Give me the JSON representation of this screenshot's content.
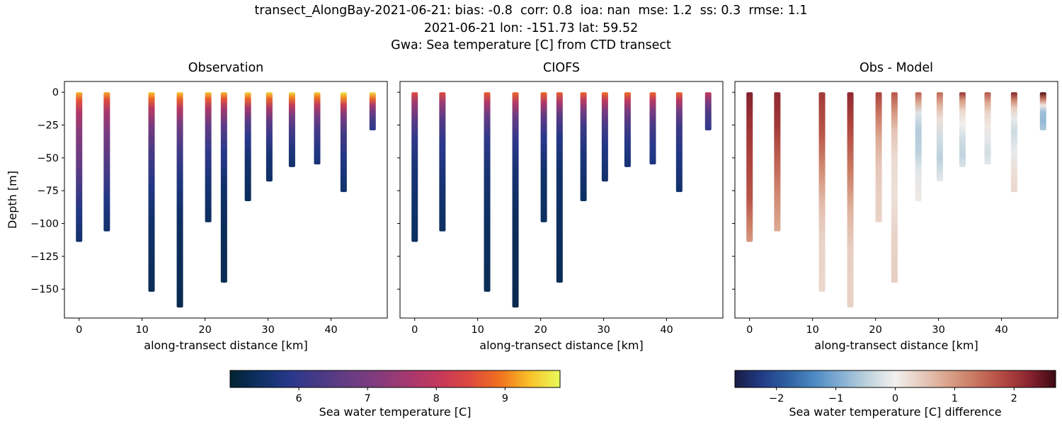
{
  "header": {
    "line1": "transect_AlongBay-2021-06-21: bias: -0.8  corr: 0.8  ioa: nan  mse: 1.2  ss: 0.3  rmse: 1.1",
    "line2": "2021-06-21 lon: -151.73 lat: 59.52",
    "line3": "Gwa: Sea temperature [C] from CTD transect"
  },
  "chart_data": {
    "type": "scatter",
    "subtype": "vertical-profile-transect",
    "xlabel": "along-transect distance [km]",
    "ylabel": "Depth [m]",
    "xlim": [
      -2.33,
      48.93
    ],
    "ylim": [
      -172,
      8.2
    ],
    "xticks": [
      0,
      10,
      20,
      30,
      40
    ],
    "yticks": [
      0,
      -25,
      -50,
      -75,
      -100,
      -125,
      -150
    ],
    "panels": [
      {
        "title": "Observation",
        "profile_key": "obs",
        "cmap": "thermal",
        "vmin": 5.0,
        "vmax": 9.8
      },
      {
        "title": "CIOFS",
        "profile_key": "model",
        "cmap": "thermal",
        "vmin": 5.0,
        "vmax": 9.8
      },
      {
        "title": "Obs - Model",
        "profile_key": "diff",
        "cmap": "balance",
        "vmin": -2.7,
        "vmax": 2.7
      }
    ],
    "colorbars": [
      {
        "label": "Sea water temperature [C]",
        "cmap": "thermal",
        "vmin": 5.0,
        "vmax": 9.8,
        "ticks": [
          6,
          7,
          8,
          9
        ]
      },
      {
        "label": "Sea water temperature [C] difference",
        "cmap": "balance",
        "vmin": -2.7,
        "vmax": 2.7,
        "ticks": [
          -2,
          -1,
          0,
          1,
          2
        ]
      }
    ],
    "colormaps": {
      "thermal": [
        "#042333",
        "#0d3064",
        "#28388d",
        "#493a85",
        "#683c83",
        "#873b7c",
        "#a7386e",
        "#c5395a",
        "#de493e",
        "#f0711e",
        "#fac228",
        "#e8fa5b"
      ],
      "balance": [
        "#181c43",
        "#223b87",
        "#2e62a1",
        "#4e8bc4",
        "#86b0d3",
        "#c1d4de",
        "#f2f0ee",
        "#e7cabc",
        "#d9a188",
        "#c97760",
        "#b34a41",
        "#8c2430",
        "#3c0911"
      ]
    },
    "stations": [
      {
        "x": 0,
        "bottom": -114,
        "obs": [
          [
            0,
            9.3
          ],
          [
            -6,
            8.6
          ],
          [
            -15,
            7.8
          ],
          [
            -30,
            7.2
          ],
          [
            -50,
            6.8
          ],
          [
            -70,
            6.3
          ],
          [
            -90,
            5.8
          ],
          [
            -114,
            5.5
          ]
        ],
        "model": [
          [
            0,
            8.5
          ],
          [
            -8,
            7.5
          ],
          [
            -20,
            6.6
          ],
          [
            -35,
            6.0
          ],
          [
            -60,
            5.6
          ],
          [
            -114,
            5.4
          ]
        ],
        "diff": [
          [
            0,
            2.3
          ],
          [
            -20,
            2.1
          ],
          [
            -50,
            1.9
          ],
          [
            -80,
            1.7
          ],
          [
            -100,
            1.3
          ],
          [
            -114,
            1.0
          ]
        ]
      },
      {
        "x": 4.4,
        "bottom": -106,
        "obs": [
          [
            0,
            9.2
          ],
          [
            -6,
            8.5
          ],
          [
            -15,
            7.6
          ],
          [
            -30,
            7.0
          ],
          [
            -55,
            6.4
          ],
          [
            -80,
            5.8
          ],
          [
            -106,
            5.5
          ]
        ],
        "model": [
          [
            0,
            8.5
          ],
          [
            -8,
            7.4
          ],
          [
            -20,
            6.5
          ],
          [
            -40,
            5.9
          ],
          [
            -70,
            5.6
          ],
          [
            -106,
            5.4
          ]
        ],
        "diff": [
          [
            0,
            2.2
          ],
          [
            -25,
            2.0
          ],
          [
            -50,
            1.6
          ],
          [
            -75,
            1.2
          ],
          [
            -106,
            0.8
          ]
        ]
      },
      {
        "x": 11.5,
        "bottom": -152,
        "obs": [
          [
            0,
            9.4
          ],
          [
            -5,
            8.8
          ],
          [
            -12,
            7.9
          ],
          [
            -25,
            7.0
          ],
          [
            -45,
            6.3
          ],
          [
            -70,
            5.8
          ],
          [
            -100,
            5.5
          ],
          [
            -152,
            5.3
          ]
        ],
        "model": [
          [
            0,
            8.7
          ],
          [
            -8,
            7.7
          ],
          [
            -18,
            6.7
          ],
          [
            -35,
            6.0
          ],
          [
            -60,
            5.6
          ],
          [
            -100,
            5.4
          ],
          [
            -152,
            5.3
          ]
        ],
        "diff": [
          [
            0,
            2.0
          ],
          [
            -30,
            1.7
          ],
          [
            -60,
            1.1
          ],
          [
            -85,
            0.6
          ],
          [
            -110,
            0.35
          ],
          [
            -152,
            0.3
          ]
        ]
      },
      {
        "x": 16,
        "bottom": -164,
        "obs": [
          [
            0,
            9.4
          ],
          [
            -5,
            8.8
          ],
          [
            -12,
            7.9
          ],
          [
            -25,
            6.9
          ],
          [
            -45,
            6.2
          ],
          [
            -70,
            5.7
          ],
          [
            -100,
            5.4
          ],
          [
            -164,
            5.25
          ]
        ],
        "model": [
          [
            0,
            8.8
          ],
          [
            -8,
            7.8
          ],
          [
            -18,
            6.8
          ],
          [
            -35,
            6.0
          ],
          [
            -60,
            5.6
          ],
          [
            -100,
            5.35
          ],
          [
            -164,
            5.25
          ]
        ],
        "diff": [
          [
            0,
            2.2
          ],
          [
            -30,
            1.8
          ],
          [
            -60,
            1.3
          ],
          [
            -90,
            0.7
          ],
          [
            -120,
            0.4
          ],
          [
            -164,
            0.35
          ]
        ]
      },
      {
        "x": 20.5,
        "bottom": -99,
        "obs": [
          [
            0,
            9.4
          ],
          [
            -5,
            8.7
          ],
          [
            -12,
            7.7
          ],
          [
            -25,
            6.7
          ],
          [
            -45,
            6.0
          ],
          [
            -70,
            5.6
          ],
          [
            -99,
            5.4
          ]
        ],
        "model": [
          [
            0,
            8.8
          ],
          [
            -8,
            7.7
          ],
          [
            -18,
            6.6
          ],
          [
            -35,
            5.9
          ],
          [
            -60,
            5.5
          ],
          [
            -99,
            5.4
          ]
        ],
        "diff": [
          [
            0,
            1.9
          ],
          [
            -15,
            1.4
          ],
          [
            -35,
            0.8
          ],
          [
            -55,
            0.5
          ],
          [
            -75,
            0.4
          ],
          [
            -99,
            0.35
          ]
        ]
      },
      {
        "x": 23,
        "bottom": -145,
        "obs": [
          [
            0,
            9.3
          ],
          [
            -5,
            8.6
          ],
          [
            -12,
            7.6
          ],
          [
            -25,
            6.6
          ],
          [
            -45,
            5.9
          ],
          [
            -70,
            5.5
          ],
          [
            -100,
            5.35
          ],
          [
            -145,
            5.3
          ]
        ],
        "model": [
          [
            0,
            8.7
          ],
          [
            -8,
            7.6
          ],
          [
            -18,
            6.5
          ],
          [
            -35,
            5.8
          ],
          [
            -60,
            5.5
          ],
          [
            -145,
            5.3
          ]
        ],
        "diff": [
          [
            0,
            1.7
          ],
          [
            -15,
            1.0
          ],
          [
            -30,
            0.5
          ],
          [
            -50,
            0.25
          ],
          [
            -80,
            0.2
          ],
          [
            -110,
            0.35
          ],
          [
            -145,
            0.4
          ]
        ]
      },
      {
        "x": 26.8,
        "bottom": -83,
        "obs": [
          [
            0,
            9.5
          ],
          [
            -5,
            8.8
          ],
          [
            -12,
            7.6
          ],
          [
            -22,
            6.5
          ],
          [
            -35,
            5.9
          ],
          [
            -55,
            5.5
          ],
          [
            -83,
            5.35
          ]
        ],
        "model": [
          [
            0,
            8.8
          ],
          [
            -6,
            7.9
          ],
          [
            -14,
            6.9
          ],
          [
            -25,
            6.2
          ],
          [
            -45,
            5.7
          ],
          [
            -83,
            5.4
          ]
        ],
        "diff": [
          [
            0,
            1.6
          ],
          [
            -8,
            0.8
          ],
          [
            -16,
            -0.2
          ],
          [
            -28,
            -0.55
          ],
          [
            -45,
            -0.5
          ],
          [
            -60,
            -0.15
          ],
          [
            -83,
            0.1
          ]
        ]
      },
      {
        "x": 30.2,
        "bottom": -68,
        "obs": [
          [
            0,
            9.5
          ],
          [
            -5,
            8.8
          ],
          [
            -12,
            7.7
          ],
          [
            -22,
            6.6
          ],
          [
            -35,
            6.0
          ],
          [
            -50,
            5.6
          ],
          [
            -68,
            5.45
          ]
        ],
        "model": [
          [
            0,
            8.9
          ],
          [
            -6,
            8.0
          ],
          [
            -14,
            7.0
          ],
          [
            -25,
            6.3
          ],
          [
            -40,
            5.8
          ],
          [
            -68,
            5.5
          ]
        ],
        "diff": [
          [
            0,
            1.5
          ],
          [
            -10,
            0.7
          ],
          [
            -20,
            0.2
          ],
          [
            -35,
            -0.3
          ],
          [
            -50,
            -0.5
          ],
          [
            -60,
            -0.3
          ],
          [
            -68,
            -0.1
          ]
        ]
      },
      {
        "x": 33.8,
        "bottom": -57,
        "obs": [
          [
            0,
            9.6
          ],
          [
            -4,
            9.0
          ],
          [
            -10,
            8.0
          ],
          [
            -18,
            6.9
          ],
          [
            -30,
            6.2
          ],
          [
            -45,
            5.7
          ],
          [
            -57,
            5.5
          ]
        ],
        "model": [
          [
            0,
            8.9
          ],
          [
            -6,
            8.0
          ],
          [
            -14,
            7.0
          ],
          [
            -25,
            6.3
          ],
          [
            -40,
            5.8
          ],
          [
            -57,
            5.6
          ]
        ],
        "diff": [
          [
            0,
            2.1
          ],
          [
            -6,
            1.0
          ],
          [
            -14,
            0.3
          ],
          [
            -24,
            0.0
          ],
          [
            -35,
            -0.3
          ],
          [
            -48,
            -0.45
          ],
          [
            -57,
            -0.2
          ]
        ]
      },
      {
        "x": 37.8,
        "bottom": -55,
        "obs": [
          [
            0,
            9.5
          ],
          [
            -4,
            8.9
          ],
          [
            -10,
            7.9
          ],
          [
            -18,
            6.9
          ],
          [
            -30,
            6.2
          ],
          [
            -45,
            5.8
          ],
          [
            -55,
            5.6
          ]
        ],
        "model": [
          [
            0,
            8.8
          ],
          [
            -6,
            7.9
          ],
          [
            -14,
            7.0
          ],
          [
            -25,
            6.3
          ],
          [
            -40,
            5.9
          ],
          [
            -55,
            5.7
          ]
        ],
        "diff": [
          [
            0,
            1.7
          ],
          [
            -8,
            0.8
          ],
          [
            -16,
            0.3
          ],
          [
            -26,
            0.1
          ],
          [
            -36,
            -0.15
          ],
          [
            -46,
            -0.3
          ],
          [
            -55,
            -0.15
          ]
        ]
      },
      {
        "x": 42,
        "bottom": -76,
        "obs": [
          [
            0,
            9.7
          ],
          [
            -4,
            9.1
          ],
          [
            -10,
            8.1
          ],
          [
            -18,
            7.0
          ],
          [
            -30,
            6.3
          ],
          [
            -50,
            5.8
          ],
          [
            -76,
            5.5
          ]
        ],
        "model": [
          [
            0,
            8.8
          ],
          [
            -6,
            7.9
          ],
          [
            -14,
            6.9
          ],
          [
            -25,
            6.2
          ],
          [
            -45,
            5.8
          ],
          [
            -76,
            5.5
          ]
        ],
        "diff": [
          [
            0,
            2.3
          ],
          [
            -6,
            1.2
          ],
          [
            -12,
            0.4
          ],
          [
            -20,
            -0.1
          ],
          [
            -30,
            -0.35
          ],
          [
            -45,
            -0.1
          ],
          [
            -60,
            0.2
          ],
          [
            -76,
            0.3
          ]
        ]
      },
      {
        "x": 46.6,
        "bottom": -29,
        "obs": [
          [
            0,
            9.6
          ],
          [
            -5,
            8.8
          ],
          [
            -10,
            7.6
          ],
          [
            -16,
            6.7
          ],
          [
            -22,
            6.2
          ],
          [
            -29,
            5.9
          ]
        ],
        "model": [
          [
            0,
            8.0
          ],
          [
            -6,
            7.2
          ],
          [
            -12,
            6.6
          ],
          [
            -20,
            6.2
          ],
          [
            -29,
            6.0
          ]
        ],
        "diff": [
          [
            0,
            2.6
          ],
          [
            -5,
            1.4
          ],
          [
            -10,
            0.1
          ],
          [
            -15,
            -0.7
          ],
          [
            -22,
            -0.8
          ],
          [
            -29,
            -0.6
          ]
        ]
      }
    ]
  }
}
